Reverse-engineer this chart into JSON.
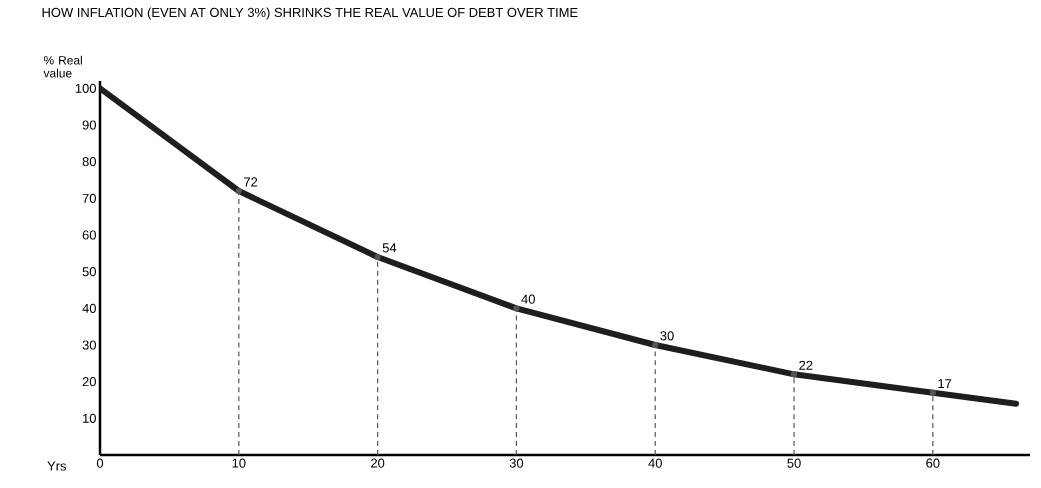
{
  "chart_data": {
    "type": "line",
    "title": "HOW INFLATION  (EVEN AT ONLY 3%) SHRINKS THE REAL VALUE OF DEBT OVER TIME",
    "xlabel": "Yrs",
    "ylabel": "% Real value",
    "xlim": [
      0,
      67
    ],
    "xticks": [
      0,
      10,
      20,
      30,
      40,
      50,
      60
    ],
    "ylim": [
      0,
      102
    ],
    "yticks": [
      10,
      20,
      30,
      40,
      50,
      60,
      70,
      80,
      90,
      100
    ],
    "marker": "none",
    "series": [
      {
        "color": "#1e1e1e",
        "line_style": "solid",
        "x": [
          0,
          5,
          10,
          20,
          30,
          40,
          50,
          60,
          66
        ],
        "values": [
          100,
          86,
          72,
          54,
          40,
          30,
          22,
          17,
          14
        ]
      },
      {
        "type": "lollipop",
        "color": "#555555",
        "line_style": "dashed",
        "marker": "circle",
        "x": [
          10,
          20,
          30,
          40,
          50,
          60
        ],
        "values": [
          72,
          54,
          40,
          30,
          22,
          17
        ],
        "value_labels": [
          "72",
          "54",
          "40",
          "30",
          "22",
          "17"
        ]
      }
    ]
  }
}
